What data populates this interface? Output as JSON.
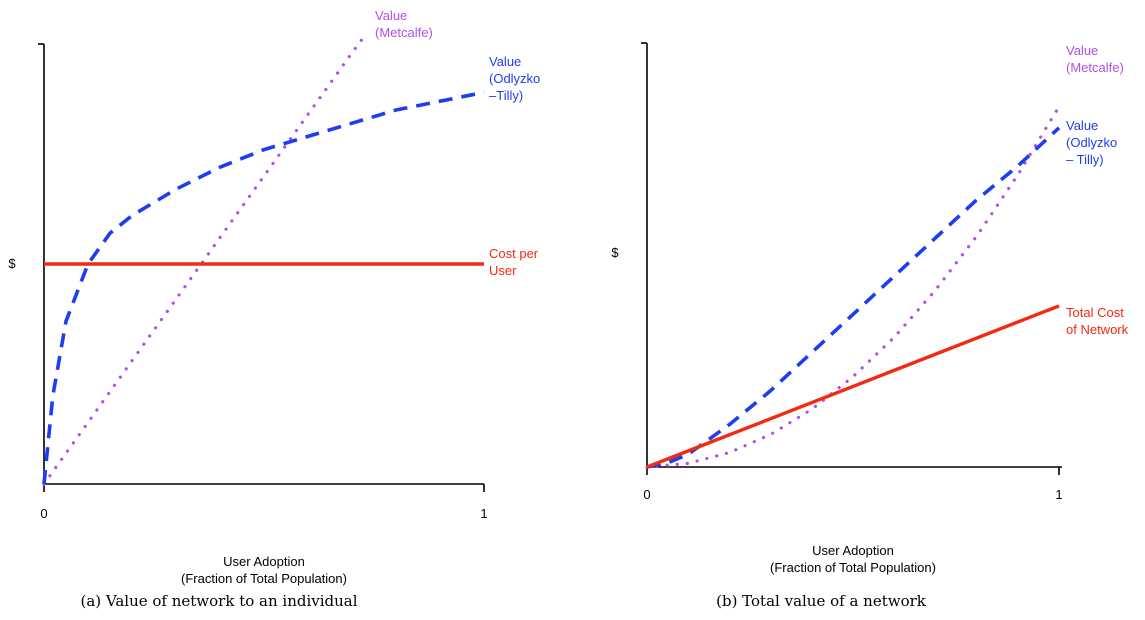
{
  "colors": {
    "metcalfe": "#b44fe6",
    "odlyzko": "#1f3df0",
    "cost": "#f22a12",
    "axis": "#000000"
  },
  "chart_data": [
    {
      "type": "line",
      "caption": "(a) Value of network to an individual",
      "ylabel": "$",
      "xlabel_lines": [
        "User Adoption",
        "(Fraction of Total Population)"
      ],
      "xlim": [
        0,
        1
      ],
      "x_ticks": [
        {
          "x": 0,
          "label": "0"
        },
        {
          "x": 1,
          "label": "1"
        }
      ],
      "series": [
        {
          "key": "metcalfe",
          "label_lines": [
            "Value",
            "(Metcalfe)"
          ],
          "style": "dotted",
          "x": [
            0,
            0.1,
            0.2,
            0.3,
            0.4,
            0.5,
            0.6,
            0.7,
            0.73
          ],
          "y": [
            0,
            0.14,
            0.28,
            0.42,
            0.56,
            0.7,
            0.84,
            0.98,
            1.02
          ]
        },
        {
          "key": "odlyzko",
          "label_lines": [
            "Value",
            "(Odlyzko",
            "–Tilly)"
          ],
          "style": "dashed",
          "x": [
            0,
            0.02,
            0.05,
            0.1,
            0.15,
            0.2,
            0.3,
            0.4,
            0.5,
            0.6,
            0.7,
            0.8,
            0.9,
            1.0
          ],
          "y": [
            0,
            0.2,
            0.37,
            0.5,
            0.57,
            0.61,
            0.67,
            0.72,
            0.76,
            0.79,
            0.82,
            0.85,
            0.87,
            0.89
          ]
        },
        {
          "key": "cost",
          "label_lines": [
            "Cost per",
            "User"
          ],
          "style": "solid",
          "x": [
            0,
            1
          ],
          "y": [
            0.5,
            0.5
          ]
        }
      ]
    },
    {
      "type": "line",
      "caption": "(b) Total value of a network",
      "ylabel": "$",
      "xlabel_lines": [
        "User Adoption",
        "(Fraction of Total Population)"
      ],
      "xlim": [
        0,
        1
      ],
      "x_ticks": [
        {
          "x": 0,
          "label": "0"
        },
        {
          "x": 1,
          "label": "1"
        }
      ],
      "series": [
        {
          "key": "metcalfe",
          "label_lines": [
            "Value",
            "(Metcalfe)"
          ],
          "style": "dotted",
          "x": [
            0,
            0.1,
            0.2,
            0.3,
            0.4,
            0.5,
            0.6,
            0.7,
            0.8,
            0.9,
            1.0
          ],
          "y": [
            0,
            0.0085,
            0.034,
            0.077,
            0.136,
            0.213,
            0.306,
            0.417,
            0.544,
            0.689,
            0.85
          ]
        },
        {
          "key": "odlyzko",
          "label_lines": [
            "Value",
            "(Odlyzko",
            "– Tilly)"
          ],
          "style": "dashed",
          "x": [
            0,
            0.05,
            0.1,
            0.2,
            0.3,
            0.4,
            0.5,
            0.6,
            0.7,
            0.8,
            0.9,
            1.0
          ],
          "y": [
            0,
            0.01,
            0.03,
            0.1,
            0.18,
            0.27,
            0.36,
            0.45,
            0.54,
            0.63,
            0.71,
            0.8
          ]
        },
        {
          "key": "cost",
          "label_lines": [
            "Total Cost",
            "of Network"
          ],
          "style": "solid",
          "x": [
            0,
            1
          ],
          "y": [
            0,
            0.38
          ]
        }
      ]
    }
  ]
}
